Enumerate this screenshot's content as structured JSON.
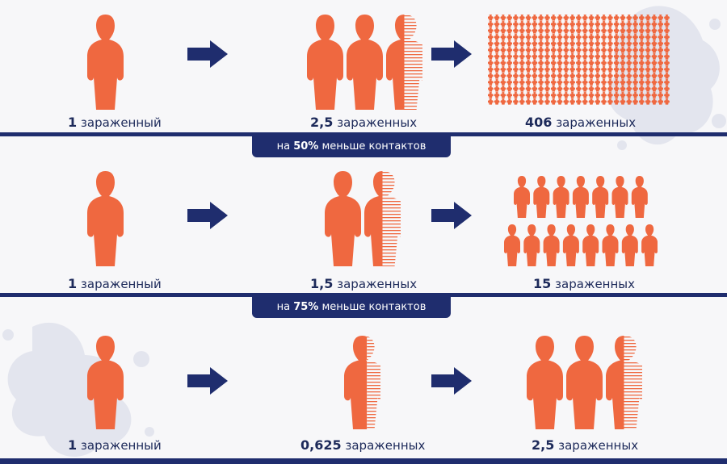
{
  "colors": {
    "figure": "#ef6840",
    "navy": "#1f2d6e",
    "background": "#f7f7f9",
    "splash": "#e3e5ee"
  },
  "icons": {
    "person": "person-icon",
    "arrow": "arrow-right-icon",
    "splash": "virus-splash-icon"
  },
  "rows": [
    {
      "start": {
        "num": "1",
        "word": "зараженный",
        "people": 1
      },
      "middle": {
        "num": "2,5",
        "word": "зараженных",
        "people": 2.5
      },
      "end": {
        "num": "406",
        "word": "зараженных",
        "people": 406
      }
    },
    {
      "start": {
        "num": "1",
        "word": "зараженный",
        "people": 1
      },
      "middle": {
        "num": "1,5",
        "word": "зараженных",
        "people": 1.5
      },
      "end": {
        "num": "15",
        "word": "зараженных",
        "people": 15
      }
    },
    {
      "start": {
        "num": "1",
        "word": "зараженный",
        "people": 1
      },
      "middle": {
        "num": "0,625",
        "word": "зараженных",
        "people": 0.625
      },
      "end": {
        "num": "2,5",
        "word": "зараженных",
        "people": 2.5
      }
    }
  ],
  "dividers": [
    {
      "pre": "на",
      "pct": "50%",
      "post": "меньше контактов"
    },
    {
      "pre": "на",
      "pct": "75%",
      "post": "меньше контактов"
    }
  ]
}
